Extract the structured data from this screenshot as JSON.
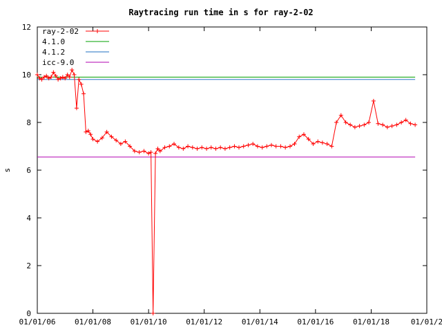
{
  "chart_data": {
    "type": "line",
    "title": "Raytracing run time in s for ray-2-02",
    "xlabel": "",
    "ylabel": "s",
    "xlim": [
      "2006-01-01",
      "2020-01-01"
    ],
    "ylim": [
      0,
      12
    ],
    "grid": false,
    "legend_position": "top-left",
    "x_tick_labels": [
      "01/01/06",
      "01/01/08",
      "01/01/10",
      "01/01/12",
      "01/01/14",
      "01/01/16",
      "01/01/18",
      "01/01/2"
    ],
    "y_tick_labels": [
      "0",
      "2",
      "4",
      "6",
      "8",
      "10",
      "12"
    ],
    "series": [
      {
        "name": "ray-2-02",
        "color": "#ff0000",
        "marker": "plus",
        "x": [
          "2006-01-01",
          "2006-02-01",
          "2006-03-01",
          "2006-04-01",
          "2006-05-01",
          "2006-06-01",
          "2006-07-01",
          "2006-08-01",
          "2006-09-01",
          "2006-10-01",
          "2006-11-01",
          "2006-12-01",
          "2007-01-01",
          "2007-02-01",
          "2007-03-01",
          "2007-04-01",
          "2007-05-01",
          "2007-06-01",
          "2007-07-01",
          "2007-08-01",
          "2007-09-01",
          "2007-10-01",
          "2007-11-01",
          "2007-12-01",
          "2008-01-01",
          "2008-03-01",
          "2008-05-01",
          "2008-07-01",
          "2008-09-01",
          "2008-11-01",
          "2009-01-01",
          "2009-03-01",
          "2009-05-01",
          "2009-07-01",
          "2009-09-01",
          "2009-11-01",
          "2010-01-01",
          "2010-02-01",
          "2010-03-01",
          "2010-04-01",
          "2010-05-01",
          "2010-06-01",
          "2010-08-01",
          "2010-10-01",
          "2010-12-01",
          "2011-02-01",
          "2011-04-01",
          "2011-06-01",
          "2011-08-01",
          "2011-10-01",
          "2011-12-01",
          "2012-02-01",
          "2012-04-01",
          "2012-06-01",
          "2012-08-01",
          "2012-10-01",
          "2012-12-01",
          "2013-02-01",
          "2013-04-01",
          "2013-06-01",
          "2013-08-01",
          "2013-10-01",
          "2013-12-01",
          "2014-02-01",
          "2014-04-01",
          "2014-06-01",
          "2014-08-01",
          "2014-10-01",
          "2014-12-01",
          "2015-02-01",
          "2015-04-01",
          "2015-06-01",
          "2015-08-01",
          "2015-10-01",
          "2015-12-01",
          "2016-02-01",
          "2016-04-01",
          "2016-06-01",
          "2016-08-01",
          "2016-10-01",
          "2016-12-01",
          "2017-02-01",
          "2017-04-01",
          "2017-06-01",
          "2017-08-01",
          "2017-10-01",
          "2017-12-01",
          "2018-02-01",
          "2018-04-01",
          "2018-06-01",
          "2018-08-01",
          "2018-10-01",
          "2018-12-01",
          "2019-02-01",
          "2019-04-01",
          "2019-06-01",
          "2019-08-01"
        ],
        "y": [
          10.0,
          9.85,
          9.8,
          9.9,
          9.95,
          9.85,
          9.9,
          10.1,
          9.95,
          9.8,
          9.85,
          9.9,
          9.85,
          10.0,
          9.9,
          10.2,
          10.0,
          8.6,
          9.8,
          9.6,
          9.2,
          7.6,
          7.65,
          7.5,
          7.3,
          7.2,
          7.35,
          7.6,
          7.4,
          7.25,
          7.1,
          7.2,
          7.0,
          6.8,
          6.75,
          6.8,
          6.7,
          6.75,
          0.0,
          6.7,
          6.9,
          6.8,
          6.95,
          7.0,
          7.1,
          6.95,
          6.9,
          7.0,
          6.95,
          6.9,
          6.95,
          6.9,
          6.95,
          6.9,
          6.95,
          6.9,
          6.95,
          7.0,
          6.95,
          7.0,
          7.05,
          7.1,
          7.0,
          6.95,
          7.0,
          7.05,
          7.0,
          7.0,
          6.95,
          7.0,
          7.1,
          7.4,
          7.5,
          7.3,
          7.1,
          7.2,
          7.15,
          7.1,
          7.0,
          8.0,
          8.3,
          8.0,
          7.9,
          7.8,
          7.85,
          7.9,
          8.0,
          8.9,
          7.95,
          7.9,
          7.8,
          7.85,
          7.9,
          8.0,
          8.1,
          7.95,
          7.9
        ]
      },
      {
        "name": "4.1.0",
        "color": "#00a000",
        "x": [
          "2006-01-01",
          "2019-08-01"
        ],
        "y": [
          9.9,
          9.9
        ]
      },
      {
        "name": "4.1.2",
        "color": "#1f6fc1",
        "x": [
          "2006-01-01",
          "2019-08-01"
        ],
        "y": [
          9.8,
          9.8
        ]
      },
      {
        "name": "icc-9.0",
        "color": "#b000b0",
        "x": [
          "2006-01-01",
          "2019-08-01"
        ],
        "y": [
          6.55,
          6.55
        ]
      }
    ]
  }
}
